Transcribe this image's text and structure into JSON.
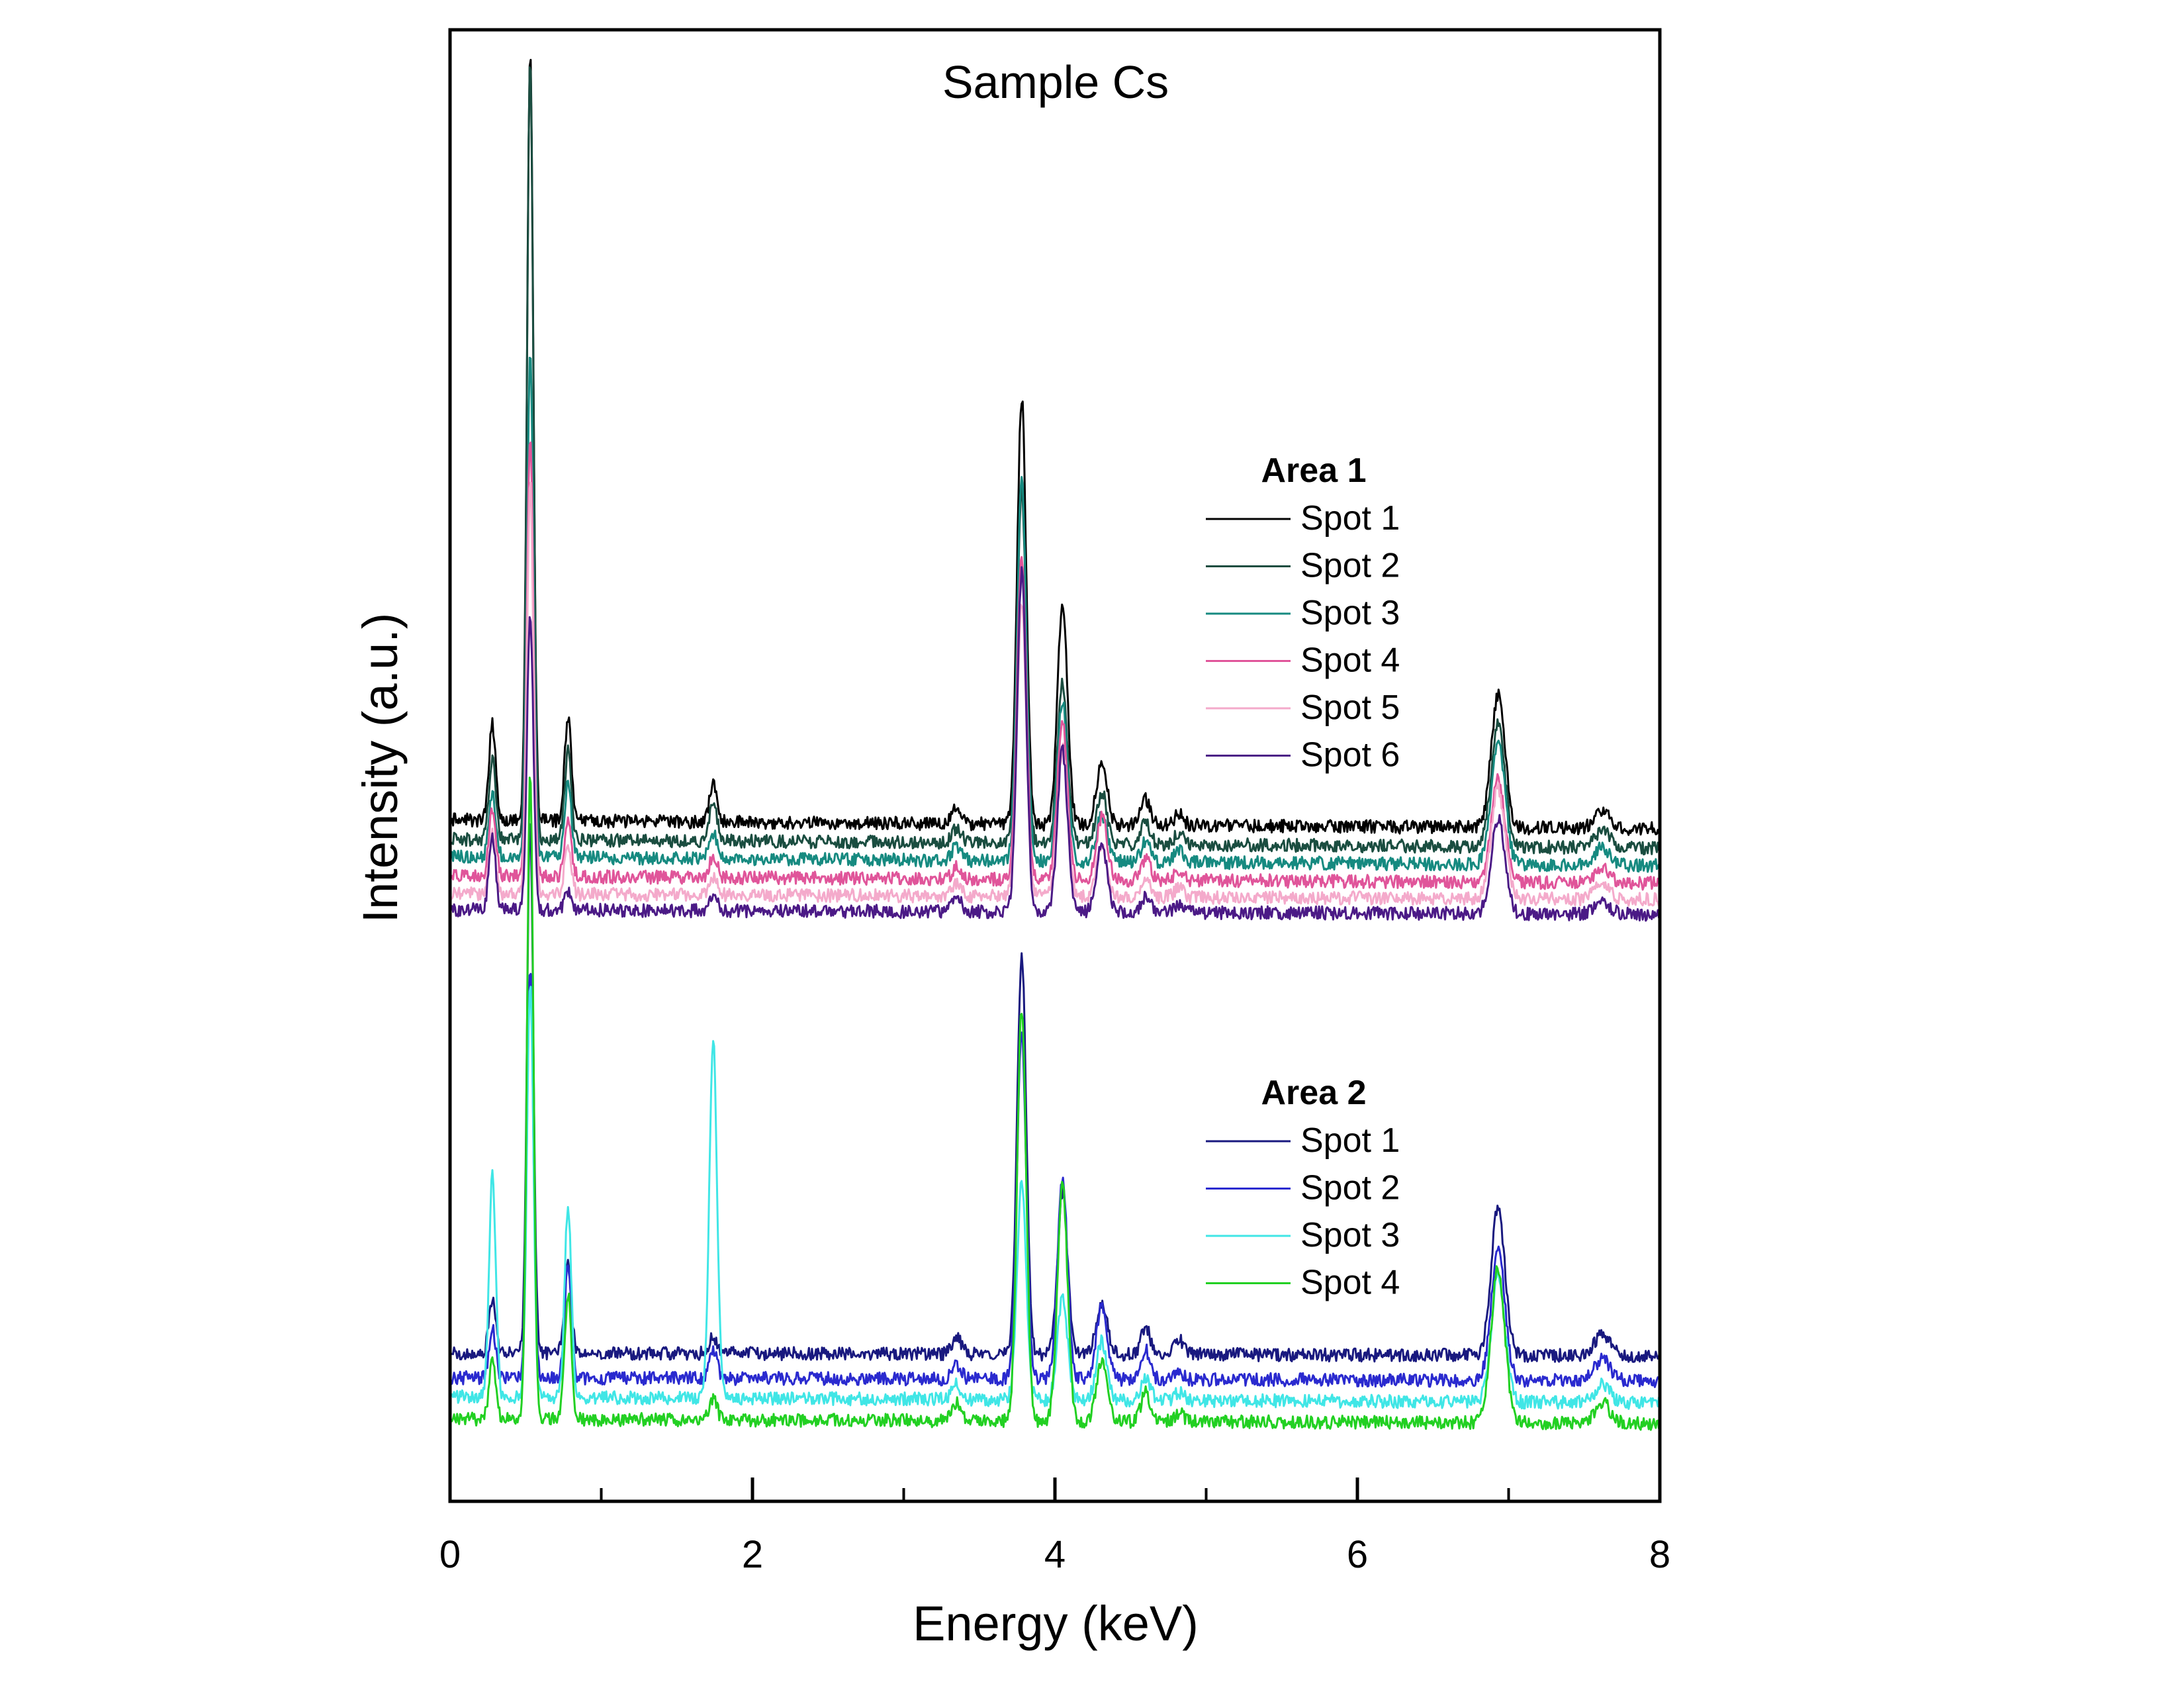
{
  "chart_data": {
    "type": "line",
    "title": "Sample Cs",
    "xlabel": "Energy (keV)",
    "ylabel": "Intensity (a.u.)",
    "xlim": [
      0,
      8
    ],
    "ylim": [
      0,
      100
    ],
    "x_ticks": [
      0,
      2,
      4,
      6,
      8
    ],
    "x_tick_labels": [
      "0",
      "2",
      "4",
      "6",
      "8"
    ],
    "y_ticks_visible": false,
    "grid": false,
    "legend_placement": "right, grouped by area",
    "peak_positions_keV": [
      0.28,
      0.53,
      0.78,
      1.74,
      3.35,
      3.78,
      4.05,
      4.31,
      4.6,
      4.82,
      6.93,
      7.62
    ],
    "groups": [
      {
        "name": "Area 1",
        "series": [
          {
            "name": "Spot 1",
            "color": "#000000",
            "baseline": 46.3,
            "end_offset": -0.6,
            "peaks": {
              "0.28": 6.5,
              "0.53": 52,
              "0.78": 7,
              "1.74": 2.5,
              "3.35": 1,
              "3.78": 29,
              "4.05": 15,
              "4.31": 4.2,
              "4.6": 1.8,
              "4.82": 0.8,
              "6.93": 9,
              "7.62": 1.2
            }
          },
          {
            "name": "Spot 2",
            "color": "#1a4d40",
            "baseline": 45.0,
            "end_offset": -0.6,
            "peaks": {
              "0.28": 5.5,
              "0.53": 53,
              "0.78": 6,
              "1.74": 2.5,
              "3.35": 1,
              "3.78": 24,
              "4.05": 11,
              "4.31": 3.5,
              "4.6": 1.5,
              "4.82": 0.8,
              "6.93": 8.5,
              "7.62": 1.2
            }
          },
          {
            "name": "Spot 3",
            "color": "#168a80",
            "baseline": 43.8,
            "end_offset": -0.6,
            "peaks": {
              "0.28": 4.5,
              "0.53": 34,
              "0.78": 5,
              "1.74": 1.8,
              "3.35": 1,
              "3.78": 26,
              "4.05": 11,
              "4.31": 3.2,
              "4.6": 1.4,
              "4.82": 0.8,
              "6.93": 8.5,
              "7.62": 1.2
            }
          },
          {
            "name": "Spot 4",
            "color": "#e0559a",
            "baseline": 42.5,
            "end_offset": -0.5,
            "peaks": {
              "0.28": 4.5,
              "0.53": 30,
              "0.78": 4,
              "1.74": 1.5,
              "3.35": 0.8,
              "3.78": 22,
              "4.05": 11,
              "4.31": 4.3,
              "4.6": 1.5,
              "4.82": 0.6,
              "6.93": 7,
              "7.62": 1
            }
          },
          {
            "name": "Spot 5",
            "color": "#f4aacb",
            "baseline": 41.3,
            "end_offset": -0.4,
            "peaks": {
              "0.28": 4,
              "0.53": 28,
              "0.78": 3.5,
              "1.74": 1.2,
              "3.35": 0.8,
              "3.78": 20,
              "4.05": 10,
              "4.31": 3.5,
              "4.6": 1.5,
              "4.82": 0.6,
              "6.93": 7.5,
              "7.62": 1
            }
          },
          {
            "name": "Spot 6",
            "color": "#4b1a86",
            "baseline": 40.2,
            "end_offset": -0.3,
            "peaks": {
              "0.28": 5,
              "0.53": 20,
              "0.78": 1.3,
              "1.74": 1,
              "3.35": 1,
              "3.78": 23,
              "4.05": 11,
              "4.31": 4.5,
              "4.6": 1,
              "4.82": 0.4,
              "6.93": 6.5,
              "7.62": 0.8
            }
          }
        ]
      },
      {
        "name": "Area 2",
        "series": [
          {
            "name": "Spot 1",
            "color": "#19197f",
            "baseline": 10.1,
            "end_offset": -0.2,
            "peaks": {
              "0.28": 3.5,
              "0.53": 36,
              "0.78": 6,
              "1.74": 1.2,
              "3.35": 1.2,
              "3.78": 27,
              "4.05": 11,
              "4.31": 3.5,
              "4.6": 1.8,
              "4.82": 1,
              "6.93": 10,
              "7.62": 1.5
            }
          },
          {
            "name": "Spot 2",
            "color": "#2a2acf",
            "baseline": 8.4,
            "end_offset": -0.2,
            "peaks": {
              "0.28": 3.5,
              "0.53": 28,
              "0.78": 7.5,
              "1.74": 2,
              "3.35": 1,
              "3.78": 23.5,
              "4.05": 13.5,
              "4.31": 5,
              "4.6": 2,
              "4.82": 0.5,
              "6.93": 9,
              "7.62": 1.5
            }
          },
          {
            "name": "Spot 3",
            "color": "#40e6e6",
            "baseline": 7.1,
            "end_offset": -0.4,
            "peaks": {
              "0.28": 15,
              "0.53": 28,
              "0.78": 13,
              "1.74": 24.5,
              "3.35": 1,
              "3.78": 15,
              "4.05": 7,
              "4.31": 4,
              "4.6": 1.5,
              "4.82": 0.5,
              "6.93": 8.5,
              "7.62": 1.2
            }
          },
          {
            "name": "Spot 4",
            "color": "#22d022",
            "baseline": 5.6,
            "end_offset": -0.3,
            "peaks": {
              "0.28": 4,
              "0.53": 44,
              "0.78": 8.5,
              "1.74": 1.5,
              "3.35": 1.2,
              "3.78": 28,
              "4.05": 16,
              "4.31": 4,
              "4.6": 2,
              "4.82": 0.6,
              "6.93": 10.5,
              "7.62": 1.4
            }
          }
        ]
      }
    ]
  }
}
